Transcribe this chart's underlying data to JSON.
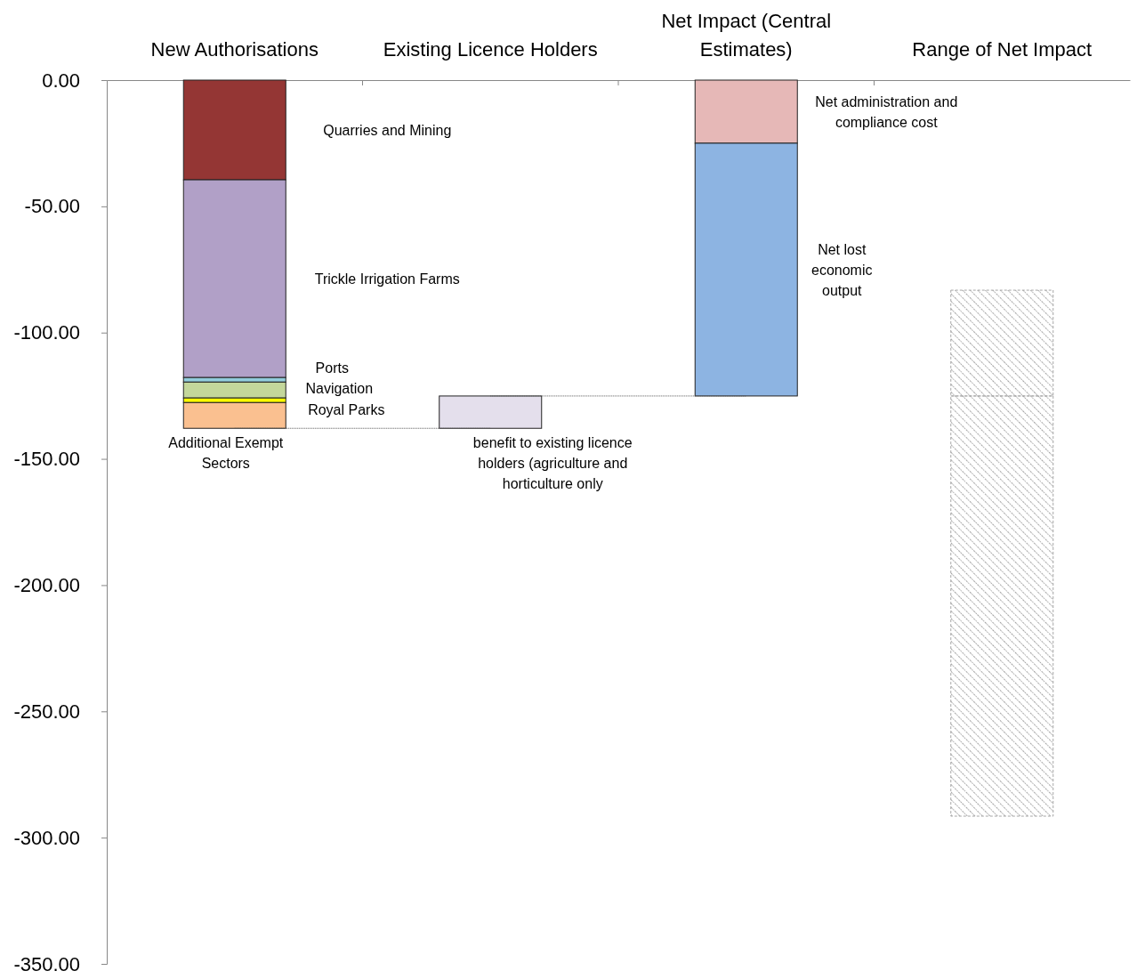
{
  "chart_data": {
    "type": "bar",
    "categories": [
      "New Authorisations",
      "Existing Licence Holders",
      "Net Impact (Central Estimates)",
      "Range of Net Impact"
    ],
    "ylim": [
      -350,
      0
    ],
    "yticks": [
      {
        "value": 0,
        "label": "0.00"
      },
      {
        "value": -50,
        "label": "-50.00"
      },
      {
        "value": -100,
        "label": "-100.00"
      },
      {
        "value": -150,
        "label": "-150.00"
      },
      {
        "value": -200,
        "label": "-200.00"
      },
      {
        "value": -250,
        "label": "-250.00"
      },
      {
        "value": -300,
        "label": "-300.00"
      },
      {
        "value": -350,
        "label": "-350.00"
      }
    ],
    "grid": false,
    "ref_lines": [
      {
        "axis": "y",
        "value": -137.9,
        "line_style": "dotted",
        "color": "#555555"
      },
      {
        "axis": "y",
        "value": -125.1,
        "line_style": "dotted",
        "color": "#555555"
      }
    ],
    "series": [
      {
        "name": "Quarries and Mining",
        "color": "#943634",
        "base": [
          0,
          null,
          null,
          null
        ],
        "values": [
          -39.5,
          null,
          null,
          null
        ]
      },
      {
        "name": "Trickle Irrigation Farms",
        "color": "#b1a0c7",
        "base": [
          -39.5,
          null,
          null,
          null
        ],
        "values": [
          -78.3,
          null,
          null,
          null
        ]
      },
      {
        "name": "Ports",
        "color": "#92cddc",
        "base": [
          -117.8,
          null,
          null,
          null
        ],
        "values": [
          -1.8,
          null,
          null,
          null
        ]
      },
      {
        "name": "Navigation",
        "color": "#c4d79b",
        "base": [
          -119.6,
          null,
          null,
          null
        ],
        "values": [
          -6.3,
          null,
          null,
          null
        ]
      },
      {
        "name": "Royal Parks",
        "color": "#ffff00",
        "base": [
          -125.9,
          null,
          null,
          null
        ],
        "values": [
          -1.8,
          null,
          null,
          null
        ]
      },
      {
        "name": "Additional Exempt Sectors",
        "color": "#fac090",
        "base": [
          -127.7,
          null,
          null,
          null
        ],
        "values": [
          -10.2,
          null,
          null,
          null
        ]
      },
      {
        "name": "benefit to existing licence holders (agriculture and horticulture only",
        "color": "#e4dfec",
        "base": [
          null,
          -137.9,
          null,
          null
        ],
        "values": [
          null,
          12.8,
          null,
          null
        ]
      },
      {
        "name": "Net administration and compliance cost",
        "color": "#e6b8b7",
        "base": [
          null,
          null,
          0,
          null
        ],
        "values": [
          null,
          null,
          -25.0,
          null
        ]
      },
      {
        "name": "Net lost economic output",
        "color": "#8db4e2",
        "base": [
          null,
          null,
          -25.0,
          null
        ],
        "values": [
          null,
          null,
          -100.1,
          null
        ]
      },
      {
        "color": "#a6a6a6",
        "base": [
          null,
          null,
          null,
          -83.2
        ],
        "values": [
          null,
          null,
          null,
          -41.9
        ]
      },
      {
        "color": "#a6a6a6",
        "base": [
          null,
          null,
          null,
          -125.1
        ],
        "values": [
          null,
          null,
          null,
          -166.4
        ]
      }
    ]
  }
}
